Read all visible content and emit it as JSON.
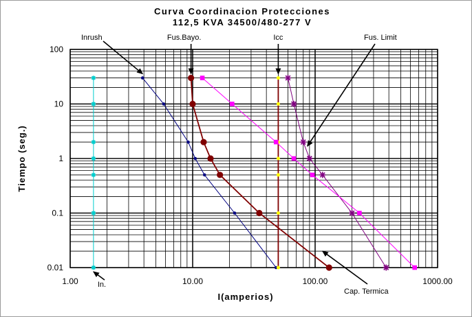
{
  "chart_data": {
    "type": "line",
    "title": "Curva Coordinacion Protecciones",
    "subtitle": "112,5 KVA 34500/480-277 V",
    "xlabel": "I(amperios)",
    "ylabel": "Tiempo (seg.)",
    "xscale": "log",
    "yscale": "log",
    "xlim": [
      1,
      1000
    ],
    "ylim": [
      0.01,
      100
    ],
    "grid": true,
    "x_tick_labels": [
      "1.00",
      "10.00",
      "100.00",
      "1000.00"
    ],
    "y_tick_labels": [
      "0.01",
      "0.1",
      "1",
      "10",
      "100"
    ],
    "series": [
      {
        "name": "Inrush",
        "color": "#000080",
        "marker": "circle",
        "marker_size": 2.3,
        "points": [
          [
            3.9,
            30
          ],
          [
            5.8,
            10
          ],
          [
            9.2,
            2
          ],
          [
            10.5,
            1
          ],
          [
            12.5,
            0.5
          ],
          [
            22,
            0.1
          ],
          [
            48,
            0.01
          ]
        ]
      },
      {
        "name": "Fus.Bayo.",
        "color": "#800000",
        "marker": "circle",
        "marker_size": 4.6,
        "points": [
          [
            9.7,
            30
          ],
          [
            10.0,
            10
          ],
          [
            12.3,
            2
          ],
          [
            14.0,
            1
          ],
          [
            16.7,
            0.5
          ],
          [
            35,
            0.1
          ],
          [
            130,
            0.01
          ]
        ]
      },
      {
        "name": "Icc",
        "color": "#800000",
        "marker": "circle",
        "marker_size": 2.5,
        "marker_color": "#ffff00",
        "points": [
          [
            50,
            30
          ],
          [
            50,
            10
          ],
          [
            50,
            2
          ],
          [
            50,
            1
          ],
          [
            50,
            0.5
          ],
          [
            50,
            0.1
          ],
          [
            50,
            0.01
          ]
        ]
      },
      {
        "name": "Fus. Limit",
        "color": "#800080",
        "marker": "star",
        "marker_size": 4.5,
        "points": [
          [
            60,
            30
          ],
          [
            67,
            10
          ],
          [
            80,
            2
          ],
          [
            90,
            1
          ],
          [
            115,
            0.5
          ],
          [
            200,
            0.1
          ],
          [
            380,
            0.01
          ]
        ]
      },
      {
        "name": "Cap. Termica",
        "color": "#ff00ff",
        "marker": "square",
        "marker_size": 3.3,
        "points": [
          [
            12,
            30
          ],
          [
            21,
            10
          ],
          [
            48,
            2
          ],
          [
            67,
            1
          ],
          [
            95,
            0.5
          ],
          [
            230,
            0.1
          ],
          [
            650,
            0.01
          ]
        ]
      },
      {
        "name": "In.",
        "color": "#00cccc",
        "marker": "star",
        "marker_size": 3.2,
        "points": [
          [
            1.55,
            30
          ],
          [
            1.55,
            10
          ],
          [
            1.55,
            2
          ],
          [
            1.55,
            1
          ],
          [
            1.55,
            0.5
          ],
          [
            1.55,
            0.1
          ],
          [
            1.55,
            0.01
          ]
        ]
      }
    ],
    "annotations": [
      {
        "text": "Inrush",
        "target": [
          3.9,
          30
        ],
        "label_anchor": "top-left"
      },
      {
        "text": "Fus.Bayo.",
        "target": [
          9.7,
          30
        ],
        "label_anchor": "top"
      },
      {
        "text": "Icc",
        "target": [
          50,
          30
        ],
        "label_anchor": "top"
      },
      {
        "text": "Fus. Limit",
        "target": [
          80,
          2
        ],
        "label_anchor": "top-right"
      },
      {
        "text": "In.",
        "target": [
          1.55,
          0.01
        ],
        "label_anchor": "bottom-left"
      },
      {
        "text": "Cap. Termica",
        "target": [
          115,
          0.02
        ],
        "label_anchor": "bottom-right"
      }
    ]
  }
}
